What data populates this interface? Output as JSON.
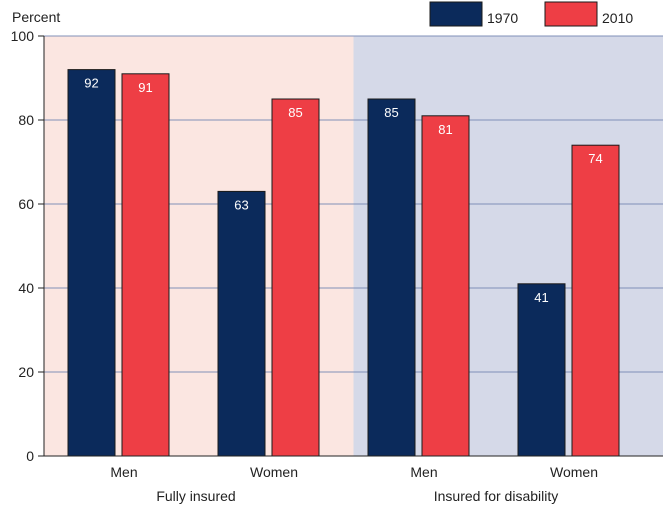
{
  "chart_data": {
    "type": "bar",
    "ylabel": "Percent",
    "ylim": [
      0,
      100
    ],
    "yticks": [
      0,
      20,
      40,
      60,
      80,
      100
    ],
    "grid": true,
    "legend_position": "top-right",
    "groups": [
      {
        "label": "Fully insured",
        "background": "#fbe6e1"
      },
      {
        "label": "Insured for disability",
        "background": "#d5d9e8"
      }
    ],
    "categories": [
      "Men",
      "Women",
      "Men",
      "Women"
    ],
    "category_group": [
      0,
      0,
      1,
      1
    ],
    "series": [
      {
        "name": "1970",
        "color": "#0b2a5b",
        "values": [
          92,
          63,
          85,
          41
        ]
      },
      {
        "name": "2010",
        "color": "#ee3e45",
        "values": [
          91,
          85,
          81,
          74
        ]
      }
    ]
  }
}
